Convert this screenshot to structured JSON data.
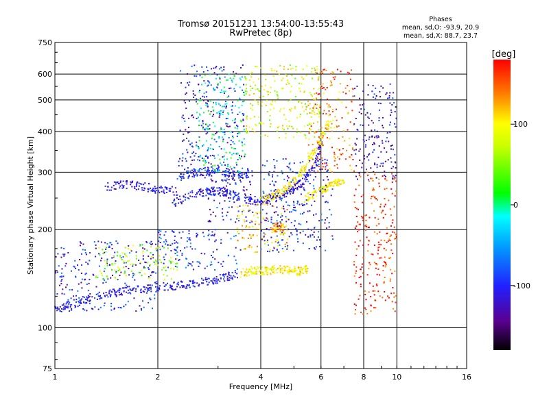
{
  "chart_data": {
    "type": "scatter",
    "title": "Tromsø 20151231 13:54:00-13:55:43",
    "subtitle": "RwPretec (8p)",
    "xlabel": "Frequency [MHz]",
    "ylabel": "Stationary phase Virtual Height [km]",
    "x_scale": "log",
    "y_scale": "log",
    "xlim": [
      1,
      16
    ],
    "ylim": [
      75,
      750
    ],
    "x_ticks": [
      "1",
      "2",
      "4",
      "6",
      "8",
      "10",
      "16"
    ],
    "x_tick_values": [
      1,
      2,
      4,
      6,
      8,
      10,
      16
    ],
    "y_ticks": [
      "75",
      "100",
      "200",
      "300",
      "400",
      "500",
      "600",
      "750"
    ],
    "y_tick_values": [
      75,
      100,
      200,
      300,
      400,
      500,
      600,
      750
    ],
    "grid": true,
    "legend": {
      "title": "Phases",
      "lines": [
        "mean, sd,O: -93.9, 20.9",
        "mean, sd,X: 88.7, 23.7"
      ],
      "placement": "top-right"
    },
    "colorbar": {
      "label": "[deg]",
      "range": [
        -180,
        180
      ],
      "ticks": [
        "100",
        "0",
        "-100"
      ],
      "tick_values": [
        100,
        0,
        -100
      ]
    },
    "series": [
      {
        "traces": [
          {
            "x": [
              1.0,
              1.15,
              1.3,
              1.5,
              1.7,
              1.95,
              2.2,
              2.5,
              2.8,
              3.1,
              3.4
            ],
            "y": [
              114,
              119,
              124,
              128,
              131,
              133,
              134,
              136,
              139,
              142,
              146
            ],
            "phase": -105
          },
          {
            "x": [
              1.4,
              1.6,
              1.8,
              2.0,
              2.3
            ],
            "y": [
              270,
              275,
              272,
              266,
              262
            ],
            "phase": -110
          },
          {
            "x": [
              2.2,
              2.5,
              2.8,
              3.0,
              3.2,
              3.5
            ],
            "y": [
              240,
              255,
              262,
              262,
              257,
              252
            ],
            "phase": -105
          },
          {
            "x": [
              2.3,
              2.6,
              2.9,
              3.3,
              3.7
            ],
            "y": [
              290,
              300,
              305,
              300,
              295
            ],
            "phase": -95
          },
          {
            "x": [
              3.6,
              3.9,
              4.2,
              4.6,
              5.0,
              5.4,
              5.8,
              6.0
            ],
            "y": [
              248,
              245,
              248,
              255,
              268,
              285,
              320,
              370
            ],
            "phase": -110
          },
          {
            "x": [
              4.0,
              4.4,
              4.8,
              5.2,
              5.6,
              6.0,
              6.4
            ],
            "y": [
              245,
              255,
              270,
              295,
              330,
              380,
              440
            ],
            "phase": 100
          },
          {
            "x": [
              5.4,
              5.8,
              6.2,
              6.6,
              7.0
            ],
            "y": [
              250,
              258,
              268,
              280,
              275
            ],
            "phase": 105
          },
          {
            "x": [
              3.5,
              3.8,
              4.1,
              4.4,
              4.8,
              5.2,
              5.5
            ],
            "y": [
              147,
              150,
              149,
              151,
              150,
              149,
              151
            ],
            "phase": 100
          },
          {
            "x": [
              4.3,
              4.5,
              4.7
            ],
            "y": [
              198,
              205,
              200
            ],
            "phase": 130
          }
        ]
      },
      {
        "clouds": [
          {
            "xr": [
              1.0,
              2.0
            ],
            "yr": [
              112,
              185
            ],
            "phase": -105
          },
          {
            "xr": [
              1.3,
              2.3
            ],
            "yr": [
              140,
              180
            ],
            "phase": 60
          },
          {
            "xr": [
              2.0,
              3.5
            ],
            "yr": [
              150,
              200
            ],
            "phase": -90
          },
          {
            "xr": [
              2.3,
              3.6
            ],
            "yr": [
              280,
              640
            ],
            "phase": -110
          },
          {
            "xr": [
              2.6,
              3.6
            ],
            "yr": [
              300,
              600
            ],
            "phase": -10
          },
          {
            "xr": [
              2.8,
              3.8
            ],
            "yr": [
              210,
              310
            ],
            "phase": -110
          },
          {
            "xr": [
              3.4,
              4.8
            ],
            "yr": [
              170,
              240
            ],
            "phase": 110
          },
          {
            "xr": [
              3.6,
              6.0
            ],
            "yr": [
              380,
              640
            ],
            "phase": 80
          },
          {
            "xr": [
              4.0,
              6.5
            ],
            "yr": [
              170,
              330
            ],
            "phase": -100
          },
          {
            "xr": [
              5.5,
              7.5
            ],
            "yr": [
              300,
              620
            ],
            "phase": 140
          },
          {
            "xr": [
              7.5,
              10.0
            ],
            "yr": [
              280,
              560
            ],
            "phase": -120
          },
          {
            "xr": [
              7.5,
              10.0
            ],
            "yr": [
              110,
              300
            ],
            "phase": 170
          }
        ]
      }
    ]
  }
}
